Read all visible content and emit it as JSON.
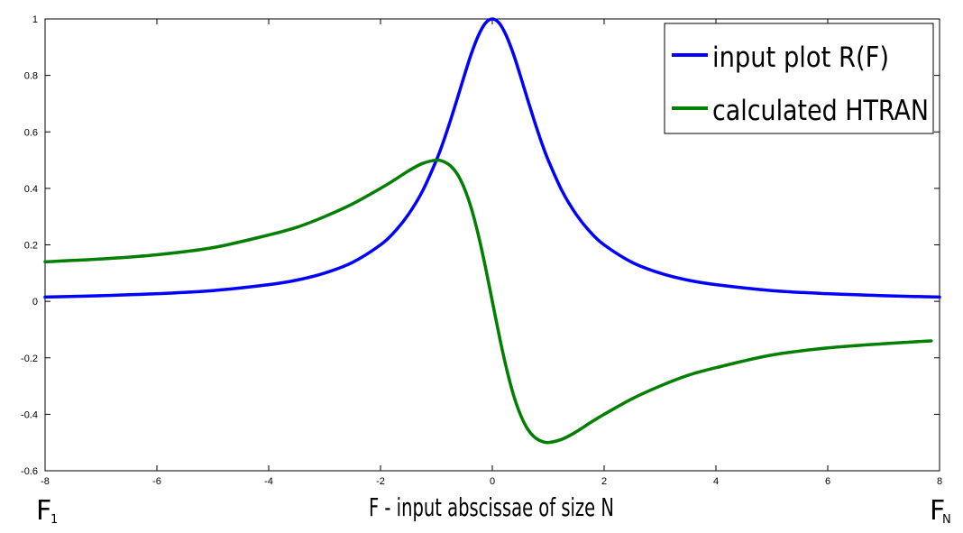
{
  "chart_data": {
    "type": "line",
    "xlabel": "F - input abscissae of size N",
    "x_start_label": "F",
    "x_start_sub": "1",
    "x_end_label": "F",
    "x_end_sub": "N",
    "xlim": [
      -8,
      8
    ],
    "ylim": [
      -0.6,
      1
    ],
    "xticks": [
      -8,
      -6,
      -4,
      -2,
      0,
      2,
      4,
      6,
      8
    ],
    "yticks": [
      -0.6,
      -0.4,
      -0.2,
      0,
      0.2,
      0.4,
      0.6,
      0.8,
      1
    ],
    "grid": false,
    "legend_position": "top-right",
    "x": [
      -8,
      -7,
      -6,
      -5,
      -4,
      -3.5,
      -3,
      -2.5,
      -2,
      -1.75,
      -1.5,
      -1.25,
      -1,
      -0.875,
      -0.75,
      -0.625,
      -0.5,
      -0.375,
      -0.25,
      -0.125,
      0,
      0.125,
      0.25,
      0.375,
      0.5,
      0.625,
      0.75,
      0.875,
      1,
      1.25,
      1.5,
      1.75,
      2,
      2.5,
      3,
      3.5,
      4,
      5,
      6,
      7,
      8
    ],
    "series": [
      {
        "name": "input plot R(F)",
        "color": "#0000ff",
        "values": [
          0.015,
          0.02,
          0.027,
          0.038,
          0.059,
          0.075,
          0.1,
          0.138,
          0.2,
          0.246,
          0.308,
          0.39,
          0.5,
          0.566,
          0.64,
          0.719,
          0.8,
          0.877,
          0.941,
          0.985,
          1.0,
          0.985,
          0.941,
          0.877,
          0.8,
          0.719,
          0.64,
          0.566,
          0.5,
          0.39,
          0.308,
          0.246,
          0.2,
          0.138,
          0.1,
          0.075,
          0.059,
          0.038,
          0.027,
          0.02,
          0.015
        ]
      },
      {
        "name": "calculated HTRAN",
        "color": "#007f00",
        "values": [
          0.14,
          0.15,
          0.165,
          0.19,
          0.235,
          0.262,
          0.3,
          0.345,
          0.4,
          0.43,
          0.462,
          0.488,
          0.5,
          0.495,
          0.48,
          0.45,
          0.4,
          0.329,
          0.235,
          0.123,
          0.0,
          -0.123,
          -0.235,
          -0.329,
          -0.4,
          -0.45,
          -0.48,
          -0.495,
          -0.5,
          -0.488,
          -0.462,
          -0.43,
          -0.4,
          -0.345,
          -0.3,
          -0.262,
          -0.235,
          -0.19,
          -0.165,
          -0.15,
          -0.14
        ]
      }
    ]
  }
}
